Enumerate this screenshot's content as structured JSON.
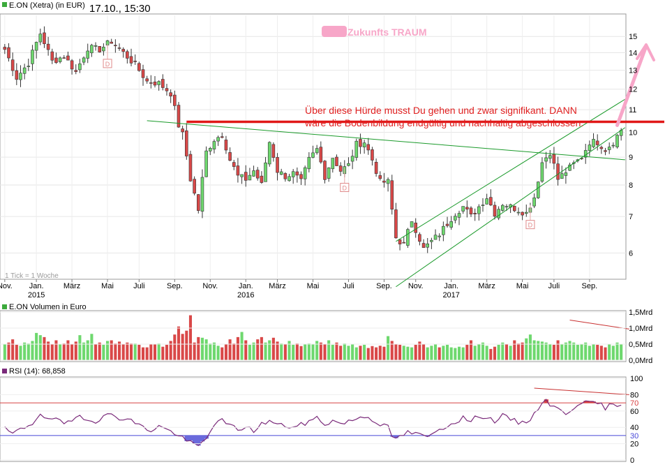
{
  "header": {
    "instrument": "E.ON (Xetra) (in EUR)",
    "datetime": "17.10., 15:30",
    "watermark": "Zukunfts TRAUM",
    "tick_note": "1 Tick = 1 Woche"
  },
  "colors": {
    "up": "#6ed86e",
    "down": "#d94848",
    "trend_line": "#1a9a2a",
    "resistance": "#e01818",
    "arrow": "#f7a6c8",
    "rsi_line": "#7a2a7a",
    "rsi_upper": "#d84040",
    "rsi_lower": "#4848d8"
  },
  "annotations": {
    "resistance_text_1": "Über diese Hürde musst Du gehen und zwar signifikant. DANN",
    "resistance_text_2": "wäre die Bodenbildung endgültig und nachhaltig abgeschlossen.",
    "dividend_marker": "D"
  },
  "chart_data": [
    {
      "type": "candlestick",
      "title": "E.ON (Xetra) (in EUR)",
      "yaxis_side": "right",
      "log_scale": true,
      "ylim": [
        5.4,
        16.4
      ],
      "y_ticks": [
        "6",
        "7",
        "8",
        "9",
        "10",
        "11",
        "12",
        "13",
        "14",
        "15"
      ],
      "y_tick_values": [
        6,
        7,
        8,
        9,
        10,
        11,
        12,
        13,
        14,
        15
      ],
      "x_ticks": [
        {
          "label": "Nov.",
          "year": "",
          "week": 0
        },
        {
          "label": "Jan.",
          "year": "2015",
          "week": 8
        },
        {
          "label": "März",
          "year": "",
          "week": 17
        },
        {
          "label": "Mai",
          "year": "",
          "week": 26
        },
        {
          "label": "Juli",
          "year": "",
          "week": 34
        },
        {
          "label": "Sep.",
          "year": "",
          "week": 43
        },
        {
          "label": "Nov.",
          "year": "",
          "week": 52
        },
        {
          "label": "Jan.",
          "year": "2016",
          "week": 61
        },
        {
          "label": "März",
          "year": "",
          "week": 69
        },
        {
          "label": "Mai",
          "year": "",
          "week": 78
        },
        {
          "label": "Juli",
          "year": "",
          "week": 87
        },
        {
          "label": "Sep.",
          "year": "",
          "week": 96
        },
        {
          "label": "Nov.",
          "year": "",
          "week": 104
        },
        {
          "label": "Jan.",
          "year": "2017",
          "week": 113
        },
        {
          "label": "März",
          "year": "",
          "week": 122
        },
        {
          "label": "Mai",
          "year": "",
          "week": 131
        },
        {
          "label": "Juli",
          "year": "",
          "week": 139
        },
        {
          "label": "Sep.",
          "year": "",
          "week": 148
        }
      ],
      "weeks": 157,
      "anchors": [
        [
          0,
          14.2
        ],
        [
          3,
          12.6
        ],
        [
          6,
          13.4
        ],
        [
          9,
          15.2
        ],
        [
          12,
          13.5
        ],
        [
          15,
          13.8
        ],
        [
          18,
          12.9
        ],
        [
          21,
          14.3
        ],
        [
          24,
          14.2
        ],
        [
          27,
          14.7
        ],
        [
          30,
          14.0
        ],
        [
          33,
          13.3
        ],
        [
          36,
          12.4
        ],
        [
          39,
          12.3
        ],
        [
          42,
          11.8
        ],
        [
          44,
          10.3
        ],
        [
          45,
          9.9
        ],
        [
          47,
          8.2
        ],
        [
          49,
          7.2
        ],
        [
          51,
          9.2
        ],
        [
          53,
          9.7
        ],
        [
          55,
          9.9
        ],
        [
          57,
          8.9
        ],
        [
          59,
          8.3
        ],
        [
          61,
          8.2
        ],
        [
          63,
          8.5
        ],
        [
          65,
          8.0
        ],
        [
          67,
          9.6
        ],
        [
          69,
          8.5
        ],
        [
          71,
          8.3
        ],
        [
          73,
          8.4
        ],
        [
          75,
          8.1
        ],
        [
          77,
          8.9
        ],
        [
          79,
          9.3
        ],
        [
          81,
          8.3
        ],
        [
          83,
          9.0
        ],
        [
          85,
          8.5
        ],
        [
          87,
          8.7
        ],
        [
          89,
          9.5
        ],
        [
          91,
          9.6
        ],
        [
          93,
          8.9
        ],
        [
          95,
          8.1
        ],
        [
          97,
          8.1
        ],
        [
          98,
          7.2
        ],
        [
          99,
          6.4
        ],
        [
          101,
          6.2
        ],
        [
          103,
          6.9
        ],
        [
          106,
          6.1
        ],
        [
          108,
          6.3
        ],
        [
          110,
          6.5
        ],
        [
          112,
          6.8
        ],
        [
          114,
          7.1
        ],
        [
          116,
          7.3
        ],
        [
          118,
          7.0
        ],
        [
          120,
          7.3
        ],
        [
          122,
          7.6
        ],
        [
          124,
          7.1
        ],
        [
          126,
          7.4
        ],
        [
          128,
          7.3
        ],
        [
          130,
          7.2
        ],
        [
          132,
          7.1
        ],
        [
          134,
          7.6
        ],
        [
          136,
          8.8
        ],
        [
          138,
          9.2
        ],
        [
          140,
          8.2
        ],
        [
          143,
          8.6
        ],
        [
          146,
          9.0
        ],
        [
          148,
          9.6
        ],
        [
          150,
          9.6
        ],
        [
          152,
          9.3
        ],
        [
          154,
          9.6
        ],
        [
          156,
          10.1
        ]
      ],
      "dividend_weeks": [
        26,
        86,
        133
      ],
      "resistance_level": 10.45,
      "trend_lines": [
        {
          "name": "downtrend",
          "from": [
            36,
            10.5
          ],
          "to": [
            157,
            8.9
          ]
        },
        {
          "name": "channel_upper",
          "from": [
            99,
            6.3
          ],
          "to": [
            157,
            11.5
          ]
        },
        {
          "name": "channel_lower",
          "from": [
            99,
            5.2
          ],
          "to": [
            157,
            10.2
          ]
        }
      ]
    },
    {
      "type": "bar",
      "title": "E.ON Volumen in Euro",
      "yaxis_side": "right",
      "ylim": [
        0,
        1.5
      ],
      "y_ticks": [
        "0,0Mrd",
        "0,5Mrd",
        "1,0Mrd",
        "1,5Mrd"
      ],
      "y_tick_values": [
        0,
        0.5,
        1.0,
        1.5
      ],
      "values_mrd": [
        0.5,
        0.55,
        0.65,
        0.48,
        0.45,
        0.55,
        0.52,
        0.6,
        0.85,
        0.78,
        0.72,
        0.58,
        0.5,
        0.62,
        0.5,
        0.52,
        0.62,
        0.5,
        0.58,
        0.78,
        0.55,
        0.62,
        0.82,
        0.5,
        0.55,
        0.48,
        0.6,
        0.62,
        0.52,
        0.58,
        0.5,
        0.55,
        0.52,
        0.52,
        0.48,
        0.4,
        0.4,
        0.5,
        0.5,
        0.52,
        0.42,
        0.48,
        0.6,
        0.8,
        1.05,
        0.82,
        0.92,
        1.4,
        0.55,
        0.72,
        0.7,
        0.65,
        0.52,
        0.55,
        0.45,
        0.4,
        0.5,
        0.65,
        0.52,
        0.72,
        0.88,
        0.62,
        0.48,
        0.55,
        0.65,
        0.72,
        0.55,
        0.62,
        0.7,
        0.58,
        0.52,
        0.5,
        0.6,
        0.48,
        0.52,
        0.44,
        0.5,
        0.52,
        0.5,
        0.6,
        0.55,
        0.5,
        0.62,
        0.48,
        0.55,
        0.45,
        0.52,
        0.45,
        0.5,
        0.4,
        0.45,
        0.48,
        0.38,
        0.44,
        0.4,
        0.45,
        0.42,
        0.75,
        0.6,
        0.5,
        0.48,
        0.45,
        0.42,
        0.4,
        0.48,
        0.58,
        0.5,
        0.4,
        0.45,
        0.5,
        0.4,
        0.45,
        0.48,
        0.4,
        0.38,
        0.42,
        0.4,
        0.48,
        0.62,
        0.45,
        0.5,
        0.55,
        0.45,
        0.35,
        0.42,
        0.48,
        0.55,
        0.5,
        0.45,
        0.62,
        0.52,
        0.55,
        0.68,
        0.8,
        0.62,
        0.6,
        0.58,
        0.55,
        0.5,
        0.48,
        0.62,
        0.5,
        0.55,
        0.6,
        0.55,
        0.48,
        0.5,
        0.55,
        0.45,
        0.5,
        0.48,
        0.45,
        0.4,
        0.5,
        0.45,
        0.55,
        0.5,
        0.48,
        0.1
      ],
      "volume_trend": {
        "from": [
          143,
          1.25
        ],
        "to": [
          157,
          0.97
        ]
      }
    },
    {
      "type": "line",
      "title": "RSI (14): 68,858",
      "yaxis_side": "right",
      "ylim": [
        0,
        100
      ],
      "y_ticks": [
        "0",
        "20",
        "40",
        "60",
        "80",
        "100"
      ],
      "y_tick_values": [
        0,
        20,
        40,
        60,
        80,
        100
      ],
      "overbought": 70,
      "oversold": 30,
      "level_labels": [
        "70",
        "30"
      ],
      "rsi_anchors": [
        [
          0,
          38
        ],
        [
          2,
          32
        ],
        [
          5,
          40
        ],
        [
          7,
          45
        ],
        [
          9,
          58
        ],
        [
          11,
          48
        ],
        [
          13,
          52
        ],
        [
          15,
          42
        ],
        [
          17,
          48
        ],
        [
          19,
          55
        ],
        [
          21,
          50
        ],
        [
          23,
          48
        ],
        [
          25,
          53
        ],
        [
          27,
          56
        ],
        [
          29,
          52
        ],
        [
          31,
          50
        ],
        [
          33,
          46
        ],
        [
          35,
          40
        ],
        [
          37,
          36
        ],
        [
          39,
          42
        ],
        [
          41,
          37
        ],
        [
          43,
          33
        ],
        [
          45,
          27
        ],
        [
          47,
          21
        ],
        [
          49,
          17
        ],
        [
          51,
          26
        ],
        [
          53,
          45
        ],
        [
          55,
          48
        ],
        [
          57,
          42
        ],
        [
          59,
          38
        ],
        [
          61,
          40
        ],
        [
          63,
          36
        ],
        [
          65,
          44
        ],
        [
          67,
          48
        ],
        [
          69,
          43
        ],
        [
          71,
          42
        ],
        [
          73,
          40
        ],
        [
          75,
          43
        ],
        [
          77,
          47
        ],
        [
          79,
          52
        ],
        [
          81,
          44
        ],
        [
          83,
          48
        ],
        [
          85,
          45
        ],
        [
          87,
          47
        ],
        [
          89,
          51
        ],
        [
          91,
          54
        ],
        [
          93,
          50
        ],
        [
          95,
          44
        ],
        [
          97,
          40
        ],
        [
          98,
          28
        ],
        [
          100,
          28
        ],
        [
          102,
          34
        ],
        [
          104,
          32
        ],
        [
          106,
          29
        ],
        [
          108,
          30
        ],
        [
          110,
          38
        ],
        [
          112,
          42
        ],
        [
          114,
          47
        ],
        [
          116,
          52
        ],
        [
          118,
          47
        ],
        [
          120,
          55
        ],
        [
          122,
          52
        ],
        [
          124,
          48
        ],
        [
          126,
          54
        ],
        [
          128,
          50
        ],
        [
          130,
          46
        ],
        [
          132,
          47
        ],
        [
          134,
          55
        ],
        [
          136,
          72
        ],
        [
          137,
          74
        ],
        [
          138,
          68
        ],
        [
          140,
          62
        ],
        [
          142,
          57
        ],
        [
          144,
          65
        ],
        [
          146,
          72
        ],
        [
          148,
          69
        ],
        [
          150,
          70
        ],
        [
          152,
          64
        ],
        [
          154,
          68
        ],
        [
          156,
          69
        ]
      ],
      "rsi_trend": {
        "from": [
          134,
          88
        ],
        "to": [
          157,
          80
        ]
      }
    }
  ]
}
